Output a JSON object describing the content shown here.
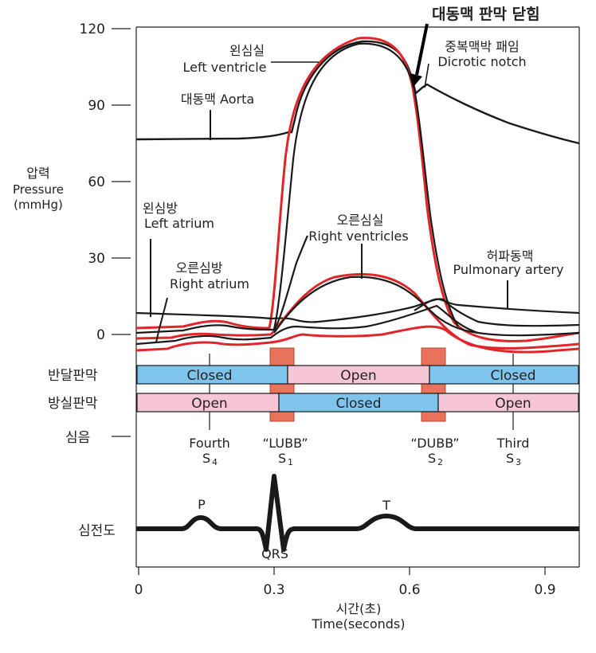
{
  "title_annotation": "대동맥 판막 닫힘",
  "y_axis": {
    "label_ko": "압력",
    "label_en": "Pressure",
    "unit": "(mmHg)",
    "ticks": [
      "120",
      "90",
      "60",
      "30",
      "0"
    ]
  },
  "x_axis": {
    "label_ko": "시간(초)",
    "label_en": "Time(seconds)",
    "ticks": [
      "0",
      "0.3",
      "0.6",
      "0.9"
    ]
  },
  "curve_labels": {
    "left_ventricle_ko": "왼심실",
    "left_ventricle_en": "Left ventricle",
    "aorta": "대동맥 Aorta",
    "dicrotic_ko": "중복맥박 패임",
    "dicrotic_en": "Dicrotic notch",
    "left_atrium_ko": "왼심방",
    "left_atrium_en": "Left atrium",
    "right_ventricle_ko": "오른심실",
    "right_ventricle_en": "Right ventricles",
    "right_atrium_ko": "오른심방",
    "right_atrium_en": "Right atrium",
    "pulmonary_ko": "허파동맥",
    "pulmonary_en": "Pulmonary artery"
  },
  "valves": {
    "semilunar_label": "반달판막",
    "av_label": "방실판막",
    "semilunar": [
      "Closed",
      "Open",
      "Closed"
    ],
    "av": [
      "Open",
      "Closed",
      "Open"
    ]
  },
  "heart_sounds": {
    "label": "심음",
    "items": [
      {
        "name": "Fourth",
        "code": "S",
        "sub": "4"
      },
      {
        "name": "“LUBB”",
        "code": "S",
        "sub": "1"
      },
      {
        "name": "“DUBB”",
        "code": "S",
        "sub": "2"
      },
      {
        "name": "Third",
        "code": "S",
        "sub": "3"
      }
    ]
  },
  "ecg": {
    "label": "심전도",
    "p": "P",
    "qrs": "QRS",
    "t": "T"
  },
  "colors": {
    "red": "#e0262b",
    "blue": "#7ec4ec",
    "pink": "#f6c5d6",
    "salmon": "#e8735a",
    "black": "#1a1a1a"
  }
}
